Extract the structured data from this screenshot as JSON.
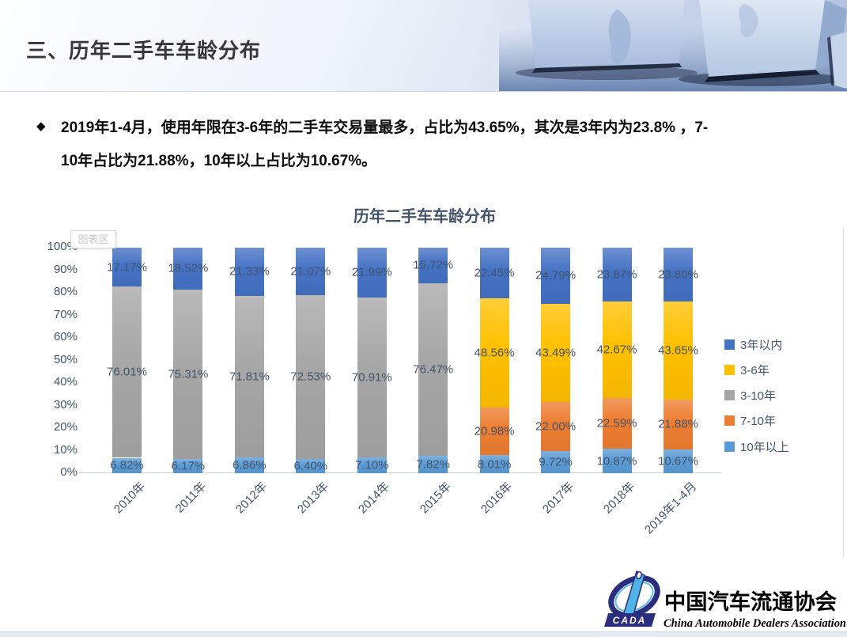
{
  "header": {
    "title": "三、历年二手车车龄分布"
  },
  "bullet": {
    "marker": "◆",
    "lines": [
      "2019年1-4月，使用年限在3-6年的二手车交易量最多，占比为43.65%，其次是3年内为23.8% ，7-",
      "10年占比为21.88%，10年以上占比为10.67%。"
    ]
  },
  "chart": {
    "title": "历年二手车车龄分布",
    "tooltip": "图表区",
    "y_ticks": [
      "100%",
      "90%",
      "80%",
      "70%",
      "60%",
      "50%",
      "40%",
      "30%",
      "20%",
      "10%",
      "0%"
    ]
  },
  "chart_data": {
    "type": "bar",
    "stacked": true,
    "unit": "%",
    "title": "历年二手车车龄分布",
    "categories": [
      "2010年",
      "2011年",
      "2012年",
      "2013年",
      "2014年",
      "2015年",
      "2016年",
      "2017年",
      "2018年",
      "2019年1-4月"
    ],
    "series": [
      {
        "name": "3年以内",
        "color": "#4472C4",
        "values": [
          17.17,
          18.52,
          21.33,
          21.07,
          21.99,
          15.72,
          22.45,
          24.79,
          23.87,
          23.8
        ],
        "labels": [
          "17.17%",
          "18.52%",
          "21.33%",
          "21.07%",
          "21.99%",
          "15.72%",
          "22.45%",
          "24.79%",
          "23.87%",
          "23.80%"
        ]
      },
      {
        "name": "3-6年",
        "color": "#FFC000",
        "values": [
          null,
          null,
          null,
          null,
          null,
          null,
          48.56,
          43.49,
          42.67,
          43.65
        ],
        "labels": [
          null,
          null,
          null,
          null,
          null,
          null,
          "48.56%",
          "43.49%",
          "42.67%",
          "43.65%"
        ]
      },
      {
        "name": "3-10年",
        "color": "#A6A6A6",
        "values": [
          76.01,
          75.31,
          71.81,
          72.53,
          70.91,
          76.47,
          null,
          null,
          null,
          null
        ],
        "labels": [
          "76.01%",
          "75.31%",
          "71.81%",
          "72.53%",
          "70.91%",
          "76.47%",
          null,
          null,
          null,
          null
        ]
      },
      {
        "name": "7-10年",
        "color": "#ED7D31",
        "values": [
          null,
          null,
          null,
          null,
          null,
          null,
          20.98,
          22.0,
          22.59,
          21.88
        ],
        "labels": [
          null,
          null,
          null,
          null,
          null,
          null,
          "20.98%",
          "22.00%",
          "22.59%",
          "21.88%"
        ]
      },
      {
        "name": "10年以上",
        "color": "#5B9BD5",
        "values": [
          6.82,
          6.17,
          6.86,
          6.4,
          7.1,
          7.82,
          8.01,
          9.72,
          10.87,
          10.67
        ],
        "labels": [
          "6.82%",
          "6.17%",
          "6.86%",
          "6.40%",
          "7.10%",
          "7.82%",
          "8.01%",
          "9.72%",
          "10.87%",
          "10.67%"
        ]
      }
    ],
    "stack_order_bottom_to_top": [
      "10年以上",
      "7-10年",
      "3-10年",
      "3-6年",
      "3年以内"
    ],
    "ylim": [
      0,
      100
    ],
    "y_tick_step": 10,
    "grid": false,
    "legend_position": "right"
  },
  "legend": {
    "items": [
      {
        "label": "3年以内",
        "color": "#4472C4"
      },
      {
        "label": "3-6年",
        "color": "#FFC000"
      },
      {
        "label": "3-10年",
        "color": "#A6A6A6"
      },
      {
        "label": "7-10年",
        "color": "#ED7D31"
      },
      {
        "label": "10年以上",
        "color": "#5B9BD5"
      }
    ]
  },
  "footer": {
    "logo_acronym": "CADA",
    "org_cn": "中国汽车流通协会",
    "org_en": "China Automobile Dealers Association"
  }
}
